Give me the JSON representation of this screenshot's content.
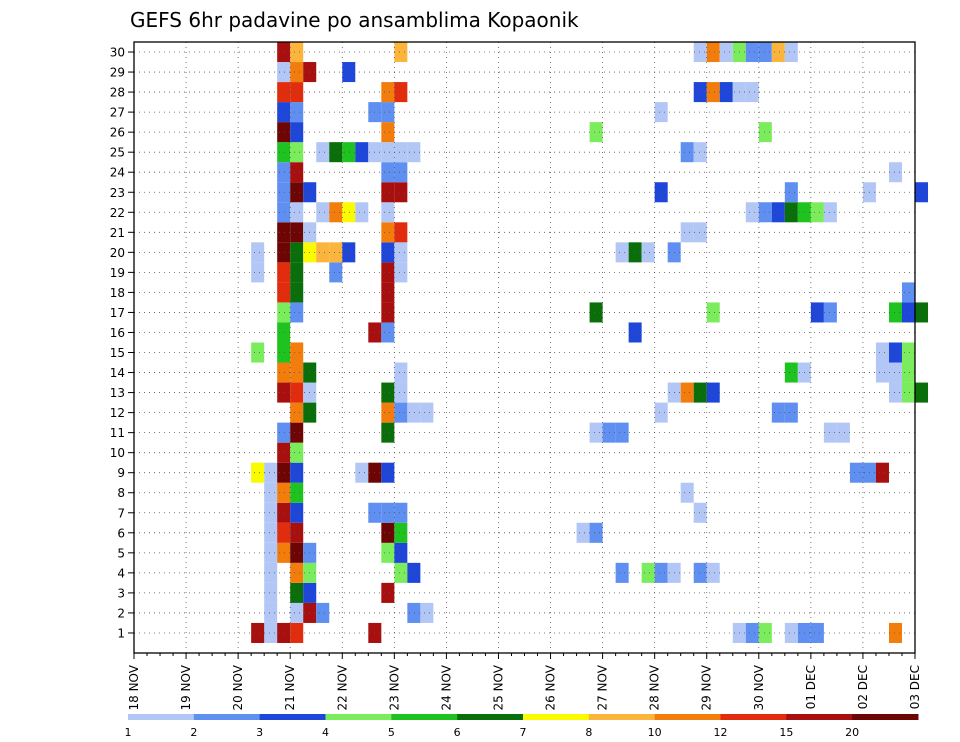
{
  "chart_data": {
    "type": "heatmap",
    "title": "GEFS 6hr padavine po ansamblima Kopaonik",
    "xlabel": "",
    "ylabel": "",
    "x_tick_labels": [
      "18 NOV",
      "19 NOV",
      "20 NOV",
      "21 NOV",
      "22 NOV",
      "23 NOV",
      "24 NOV",
      "25 NOV",
      "26 NOV",
      "27 NOV",
      "28 NOV",
      "29 NOV",
      "30 NOV",
      "01 DEC",
      "02 DEC",
      "03 DEC"
    ],
    "y_tick_labels": [
      "1",
      "2",
      "3",
      "4",
      "5",
      "6",
      "7",
      "8",
      "9",
      "10",
      "11",
      "12",
      "13",
      "14",
      "15",
      "16",
      "17",
      "18",
      "19",
      "20",
      "21",
      "22",
      "23",
      "24",
      "25",
      "26",
      "27",
      "28",
      "29",
      "30"
    ],
    "x_unit": "6-hour step since 18 NOV 00Z",
    "xlim": [
      0,
      60
    ],
    "ylim": [
      0,
      30
    ],
    "grid": true,
    "colorbar": {
      "placement": "bottom",
      "labels": [
        "1",
        "2",
        "3",
        "4",
        "5",
        "6",
        "7",
        "8",
        "10",
        "12",
        "15",
        "20"
      ],
      "colors": [
        "#b3c7f7",
        "#5f8ff0",
        "#1e46d9",
        "#7bed5d",
        "#1fc31f",
        "#0a6e0a",
        "#fafa00",
        "#fbb43c",
        "#f37d0c",
        "#e12d0d",
        "#a80f0f",
        "#6e0505"
      ]
    },
    "cells": [
      {
        "t": 11,
        "m": 1,
        "c": 1
      },
      {
        "t": 11,
        "m": 2,
        "c": 1
      },
      {
        "t": 11,
        "m": 3,
        "c": 1
      },
      {
        "t": 11,
        "m": 4,
        "c": 1
      },
      {
        "t": 11,
        "m": 5,
        "c": 1
      },
      {
        "t": 11,
        "m": 6,
        "c": 1
      },
      {
        "t": 11,
        "m": 7,
        "c": 1
      },
      {
        "t": 11,
        "m": 8,
        "c": 1
      },
      {
        "t": 11,
        "m": 9,
        "c": 1
      },
      {
        "t": 10,
        "m": 1,
        "c": 11
      },
      {
        "t": 10,
        "m": 9,
        "c": 7
      },
      {
        "t": 10,
        "m": 15,
        "c": 4
      },
      {
        "t": 10,
        "m": 19,
        "c": 1
      },
      {
        "t": 10,
        "m": 20,
        "c": 1
      },
      {
        "t": 12,
        "m": 1,
        "c": 11
      },
      {
        "t": 12,
        "m": 5,
        "c": 9
      },
      {
        "t": 12,
        "m": 6,
        "c": 10
      },
      {
        "t": 12,
        "m": 7,
        "c": 11
      },
      {
        "t": 12,
        "m": 8,
        "c": 9
      },
      {
        "t": 12,
        "m": 9,
        "c": 12
      },
      {
        "t": 12,
        "m": 10,
        "c": 11
      },
      {
        "t": 12,
        "m": 11,
        "c": 2
      },
      {
        "t": 12,
        "m": 13,
        "c": 11
      },
      {
        "t": 12,
        "m": 14,
        "c": 9
      },
      {
        "t": 12,
        "m": 15,
        "c": 5
      },
      {
        "t": 12,
        "m": 16,
        "c": 5
      },
      {
        "t": 12,
        "m": 17,
        "c": 4
      },
      {
        "t": 12,
        "m": 18,
        "c": 10
      },
      {
        "t": 12,
        "m": 19,
        "c": 10
      },
      {
        "t": 12,
        "m": 20,
        "c": 12
      },
      {
        "t": 12,
        "m": 21,
        "c": 12
      },
      {
        "t": 12,
        "m": 22,
        "c": 2
      },
      {
        "t": 12,
        "m": 23,
        "c": 2
      },
      {
        "t": 12,
        "m": 24,
        "c": 2
      },
      {
        "t": 12,
        "m": 25,
        "c": 5
      },
      {
        "t": 12,
        "m": 26,
        "c": 12
      },
      {
        "t": 12,
        "m": 27,
        "c": 3
      },
      {
        "t": 12,
        "m": 28,
        "c": 10
      },
      {
        "t": 12,
        "m": 29,
        "c": 1
      },
      {
        "t": 12,
        "m": 30,
        "c": 11
      },
      {
        "t": 13,
        "m": 1,
        "c": 10
      },
      {
        "t": 13,
        "m": 2,
        "c": 1
      },
      {
        "t": 13,
        "m": 3,
        "c": 6
      },
      {
        "t": 13,
        "m": 4,
        "c": 9
      },
      {
        "t": 13,
        "m": 5,
        "c": 12
      },
      {
        "t": 13,
        "m": 6,
        "c": 11
      },
      {
        "t": 13,
        "m": 7,
        "c": 3
      },
      {
        "t": 13,
        "m": 8,
        "c": 5
      },
      {
        "t": 13,
        "m": 9,
        "c": 3
      },
      {
        "t": 13,
        "m": 10,
        "c": 4
      },
      {
        "t": 13,
        "m": 11,
        "c": 12
      },
      {
        "t": 13,
        "m": 12,
        "c": 9
      },
      {
        "t": 13,
        "m": 13,
        "c": 10
      },
      {
        "t": 13,
        "m": 14,
        "c": 9
      },
      {
        "t": 13,
        "m": 15,
        "c": 9
      },
      {
        "t": 13,
        "m": 17,
        "c": 2
      },
      {
        "t": 13,
        "m": 18,
        "c": 6
      },
      {
        "t": 13,
        "m": 19,
        "c": 6
      },
      {
        "t": 13,
        "m": 20,
        "c": 6
      },
      {
        "t": 13,
        "m": 21,
        "c": 12
      },
      {
        "t": 13,
        "m": 22,
        "c": 1
      },
      {
        "t": 13,
        "m": 23,
        "c": 12
      },
      {
        "t": 13,
        "m": 24,
        "c": 11
      },
      {
        "t": 13,
        "m": 25,
        "c": 4
      },
      {
        "t": 13,
        "m": 26,
        "c": 3
      },
      {
        "t": 13,
        "m": 27,
        "c": 2
      },
      {
        "t": 13,
        "m": 28,
        "c": 10
      },
      {
        "t": 13,
        "m": 29,
        "c": 9
      },
      {
        "t": 13,
        "m": 30,
        "c": 8
      },
      {
        "t": 14,
        "m": 2,
        "c": 11
      },
      {
        "t": 14,
        "m": 3,
        "c": 3
      },
      {
        "t": 14,
        "m": 4,
        "c": 4
      },
      {
        "t": 14,
        "m": 5,
        "c": 2
      },
      {
        "t": 14,
        "m": 12,
        "c": 6
      },
      {
        "t": 14,
        "m": 13,
        "c": 1
      },
      {
        "t": 14,
        "m": 14,
        "c": 6
      },
      {
        "t": 14,
        "m": 20,
        "c": 7
      },
      {
        "t": 14,
        "m": 21,
        "c": 1
      },
      {
        "t": 14,
        "m": 23,
        "c": 3
      },
      {
        "t": 14,
        "m": 29,
        "c": 11
      },
      {
        "t": 15,
        "m": 2,
        "c": 2
      },
      {
        "t": 15,
        "m": 20,
        "c": 8
      },
      {
        "t": 15,
        "m": 22,
        "c": 1
      },
      {
        "t": 15,
        "m": 25,
        "c": 1
      },
      {
        "t": 16,
        "m": 19,
        "c": 2
      },
      {
        "t": 16,
        "m": 20,
        "c": 8
      },
      {
        "t": 16,
        "m": 22,
        "c": 9
      },
      {
        "t": 16,
        "m": 25,
        "c": 6
      },
      {
        "t": 17,
        "m": 20,
        "c": 3
      },
      {
        "t": 17,
        "m": 22,
        "c": 7
      },
      {
        "t": 17,
        "m": 25,
        "c": 5
      },
      {
        "t": 17,
        "m": 29,
        "c": 3
      },
      {
        "t": 18,
        "m": 9,
        "c": 1
      },
      {
        "t": 18,
        "m": 22,
        "c": 1
      },
      {
        "t": 18,
        "m": 25,
        "c": 3
      },
      {
        "t": 19,
        "m": 1,
        "c": 11
      },
      {
        "t": 19,
        "m": 7,
        "c": 2
      },
      {
        "t": 19,
        "m": 9,
        "c": 12
      },
      {
        "t": 19,
        "m": 16,
        "c": 11
      },
      {
        "t": 19,
        "m": 25,
        "c": 1
      },
      {
        "t": 19,
        "m": 27,
        "c": 2
      },
      {
        "t": 20,
        "m": 3,
        "c": 11
      },
      {
        "t": 20,
        "m": 5,
        "c": 4
      },
      {
        "t": 20,
        "m": 6,
        "c": 12
      },
      {
        "t": 20,
        "m": 7,
        "c": 2
      },
      {
        "t": 20,
        "m": 9,
        "c": 3
      },
      {
        "t": 20,
        "m": 11,
        "c": 6
      },
      {
        "t": 20,
        "m": 12,
        "c": 9
      },
      {
        "t": 20,
        "m": 13,
        "c": 6
      },
      {
        "t": 20,
        "m": 16,
        "c": 2
      },
      {
        "t": 20,
        "m": 17,
        "c": 11
      },
      {
        "t": 20,
        "m": 18,
        "c": 11
      },
      {
        "t": 20,
        "m": 19,
        "c": 11
      },
      {
        "t": 20,
        "m": 20,
        "c": 3
      },
      {
        "t": 20,
        "m": 21,
        "c": 9
      },
      {
        "t": 20,
        "m": 22,
        "c": 1
      },
      {
        "t": 20,
        "m": 23,
        "c": 11
      },
      {
        "t": 20,
        "m": 24,
        "c": 2
      },
      {
        "t": 20,
        "m": 25,
        "c": 1
      },
      {
        "t": 20,
        "m": 26,
        "c": 9
      },
      {
        "t": 20,
        "m": 27,
        "c": 2
      },
      {
        "t": 20,
        "m": 28,
        "c": 9
      },
      {
        "t": 21,
        "m": 4,
        "c": 4
      },
      {
        "t": 21,
        "m": 5,
        "c": 3
      },
      {
        "t": 21,
        "m": 6,
        "c": 5
      },
      {
        "t": 21,
        "m": 7,
        "c": 2
      },
      {
        "t": 21,
        "m": 12,
        "c": 2
      },
      {
        "t": 21,
        "m": 13,
        "c": 1
      },
      {
        "t": 21,
        "m": 14,
        "c": 1
      },
      {
        "t": 21,
        "m": 19,
        "c": 1
      },
      {
        "t": 21,
        "m": 20,
        "c": 1
      },
      {
        "t": 21,
        "m": 21,
        "c": 10
      },
      {
        "t": 21,
        "m": 23,
        "c": 11
      },
      {
        "t": 21,
        "m": 24,
        "c": 2
      },
      {
        "t": 21,
        "m": 25,
        "c": 1
      },
      {
        "t": 21,
        "m": 28,
        "c": 10
      },
      {
        "t": 21,
        "m": 30,
        "c": 8
      },
      {
        "t": 22,
        "m": 2,
        "c": 2
      },
      {
        "t": 22,
        "m": 4,
        "c": 3
      },
      {
        "t": 22,
        "m": 12,
        "c": 1
      },
      {
        "t": 22,
        "m": 25,
        "c": 1
      },
      {
        "t": 23,
        "m": 2,
        "c": 1
      },
      {
        "t": 23,
        "m": 12,
        "c": 1
      },
      {
        "t": 35,
        "m": 6,
        "c": 1
      },
      {
        "t": 36,
        "m": 6,
        "c": 2
      },
      {
        "t": 36,
        "m": 11,
        "c": 1
      },
      {
        "t": 36,
        "m": 17,
        "c": 6
      },
      {
        "t": 36,
        "m": 26,
        "c": 4
      },
      {
        "t": 37,
        "m": 11,
        "c": 2
      },
      {
        "t": 38,
        "m": 11,
        "c": 2
      },
      {
        "t": 38,
        "m": 4,
        "c": 2
      },
      {
        "t": 38,
        "m": 20,
        "c": 1
      },
      {
        "t": 39,
        "m": 16,
        "c": 3
      },
      {
        "t": 39,
        "m": 20,
        "c": 6
      },
      {
        "t": 40,
        "m": 4,
        "c": 4
      },
      {
        "t": 40,
        "m": 20,
        "c": 1
      },
      {
        "t": 41,
        "m": 4,
        "c": 2
      },
      {
        "t": 41,
        "m": 12,
        "c": 1
      },
      {
        "t": 41,
        "m": 23,
        "c": 3
      },
      {
        "t": 41,
        "m": 27,
        "c": 1
      },
      {
        "t": 42,
        "m": 4,
        "c": 1
      },
      {
        "t": 42,
        "m": 13,
        "c": 1
      },
      {
        "t": 42,
        "m": 20,
        "c": 2
      },
      {
        "t": 43,
        "m": 13,
        "c": 9
      },
      {
        "t": 43,
        "m": 21,
        "c": 1
      },
      {
        "t": 43,
        "m": 25,
        "c": 2
      },
      {
        "t": 43,
        "m": 8,
        "c": 1
      },
      {
        "t": 44,
        "m": 4,
        "c": 2
      },
      {
        "t": 44,
        "m": 7,
        "c": 1
      },
      {
        "t": 44,
        "m": 13,
        "c": 6
      },
      {
        "t": 44,
        "m": 21,
        "c": 1
      },
      {
        "t": 44,
        "m": 25,
        "c": 1
      },
      {
        "t": 44,
        "m": 28,
        "c": 3
      },
      {
        "t": 44,
        "m": 30,
        "c": 1
      },
      {
        "t": 45,
        "m": 4,
        "c": 1
      },
      {
        "t": 45,
        "m": 13,
        "c": 3
      },
      {
        "t": 45,
        "m": 17,
        "c": 4
      },
      {
        "t": 45,
        "m": 28,
        "c": 9
      },
      {
        "t": 45,
        "m": 30,
        "c": 9
      },
      {
        "t": 46,
        "m": 28,
        "c": 3
      },
      {
        "t": 46,
        "m": 30,
        "c": 1
      },
      {
        "t": 47,
        "m": 1,
        "c": 1
      },
      {
        "t": 47,
        "m": 28,
        "c": 1
      },
      {
        "t": 47,
        "m": 30,
        "c": 4
      },
      {
        "t": 48,
        "m": 1,
        "c": 2
      },
      {
        "t": 48,
        "m": 22,
        "c": 1
      },
      {
        "t": 48,
        "m": 28,
        "c": 1
      },
      {
        "t": 48,
        "m": 30,
        "c": 2
      },
      {
        "t": 49,
        "m": 1,
        "c": 4
      },
      {
        "t": 49,
        "m": 22,
        "c": 2
      },
      {
        "t": 49,
        "m": 26,
        "c": 4
      },
      {
        "t": 49,
        "m": 30,
        "c": 2
      },
      {
        "t": 50,
        "m": 12,
        "c": 2
      },
      {
        "t": 50,
        "m": 22,
        "c": 3
      },
      {
        "t": 50,
        "m": 30,
        "c": 8
      },
      {
        "t": 51,
        "m": 1,
        "c": 1
      },
      {
        "t": 51,
        "m": 12,
        "c": 2
      },
      {
        "t": 51,
        "m": 14,
        "c": 5
      },
      {
        "t": 51,
        "m": 22,
        "c": 6
      },
      {
        "t": 51,
        "m": 23,
        "c": 2
      },
      {
        "t": 51,
        "m": 30,
        "c": 1
      },
      {
        "t": 52,
        "m": 1,
        "c": 2
      },
      {
        "t": 52,
        "m": 14,
        "c": 1
      },
      {
        "t": 52,
        "m": 22,
        "c": 5
      },
      {
        "t": 53,
        "m": 1,
        "c": 2
      },
      {
        "t": 53,
        "m": 17,
        "c": 3
      },
      {
        "t": 53,
        "m": 22,
        "c": 4
      },
      {
        "t": 54,
        "m": 11,
        "c": 1
      },
      {
        "t": 54,
        "m": 17,
        "c": 2
      },
      {
        "t": 54,
        "m": 22,
        "c": 1
      },
      {
        "t": 55,
        "m": 11,
        "c": 1
      },
      {
        "t": 56,
        "m": 9,
        "c": 2
      },
      {
        "t": 57,
        "m": 9,
        "c": 2
      },
      {
        "t": 57,
        "m": 23,
        "c": 1
      },
      {
        "t": 58,
        "m": 9,
        "c": 11
      },
      {
        "t": 58,
        "m": 14,
        "c": 1
      },
      {
        "t": 58,
        "m": 15,
        "c": 1
      },
      {
        "t": 59,
        "m": 1,
        "c": 9
      },
      {
        "t": 59,
        "m": 13,
        "c": 1
      },
      {
        "t": 59,
        "m": 14,
        "c": 1
      },
      {
        "t": 59,
        "m": 15,
        "c": 3
      },
      {
        "t": 59,
        "m": 17,
        "c": 5
      },
      {
        "t": 59,
        "m": 24,
        "c": 1
      },
      {
        "t": 60,
        "m": 13,
        "c": 4
      },
      {
        "t": 60,
        "m": 14,
        "c": 4
      },
      {
        "t": 60,
        "m": 15,
        "c": 4
      },
      {
        "t": 60,
        "m": 17,
        "c": 3
      },
      {
        "t": 60,
        "m": 18,
        "c": 2
      },
      {
        "t": 61,
        "m": 13,
        "c": 6
      },
      {
        "t": 61,
        "m": 17,
        "c": 6
      },
      {
        "t": 61,
        "m": 23,
        "c": 3
      }
    ]
  }
}
